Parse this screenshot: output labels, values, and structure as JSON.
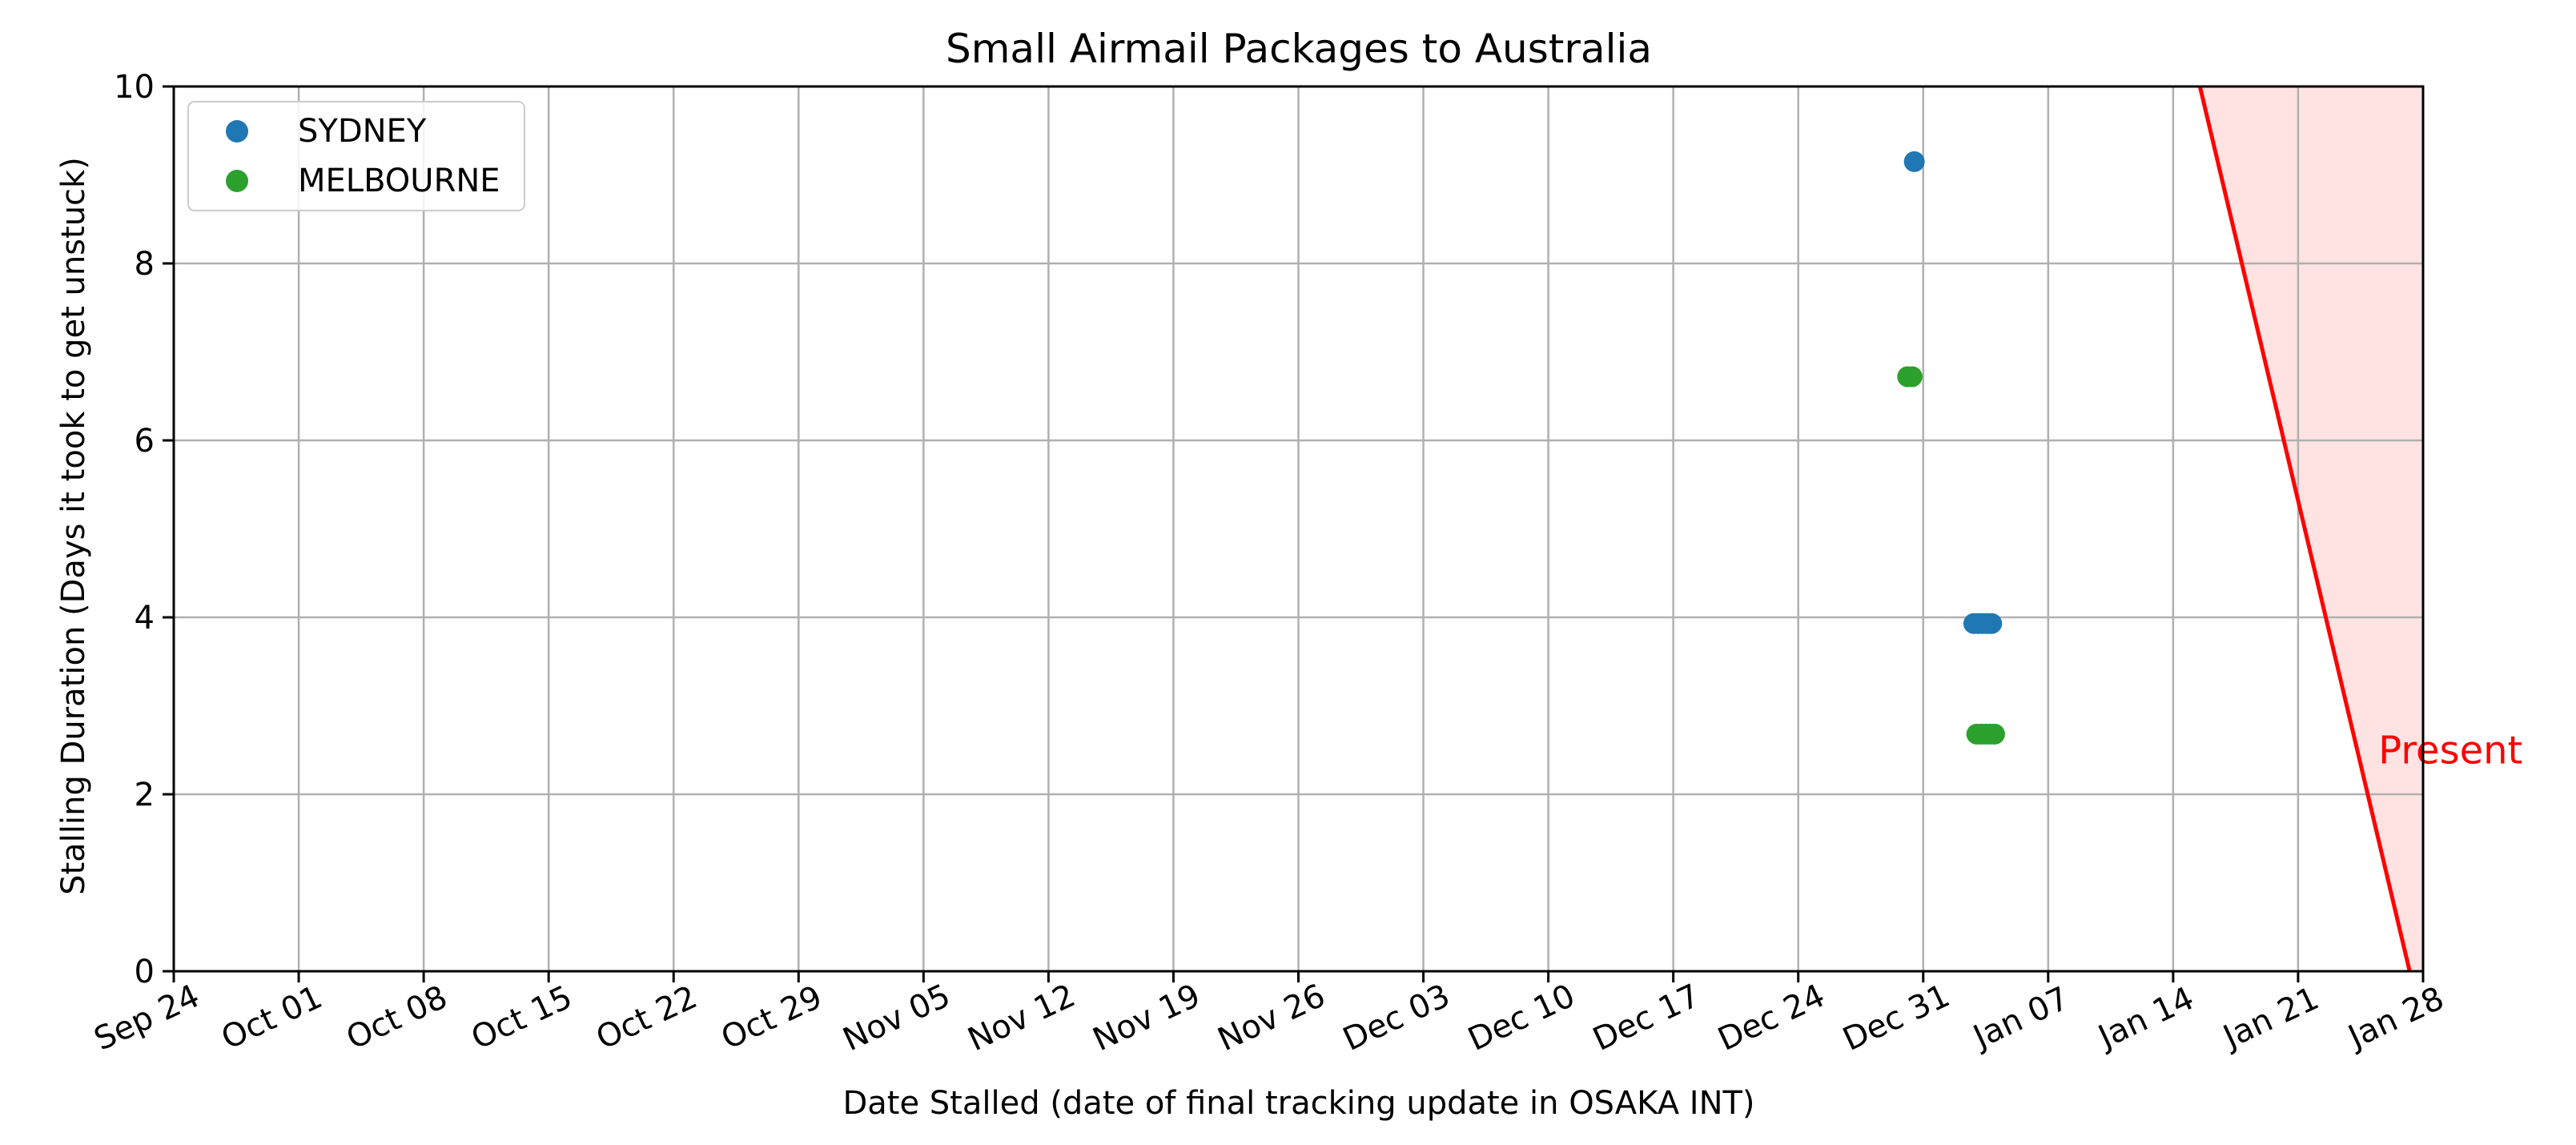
{
  "chart_data": {
    "type": "scatter",
    "title": "Small Airmail Packages to Australia",
    "xlabel": "Date Stalled (date of final tracking update in OSAKA INT)",
    "ylabel": "Stalling Duration (Days it took to get unstuck)",
    "x_axis_type": "date",
    "xlim": [
      "2023-09-24",
      "2024-01-28"
    ],
    "ylim": [
      0,
      10
    ],
    "x_ticks": [
      "Sep 24",
      "Oct 01",
      "Oct 08",
      "Oct 15",
      "Oct 22",
      "Oct 29",
      "Nov 05",
      "Nov 12",
      "Nov 19",
      "Nov 26",
      "Dec 03",
      "Dec 10",
      "Dec 17",
      "Dec 24",
      "Dec 31",
      "Jan 07",
      "Jan 14",
      "Jan 21",
      "Jan 28"
    ],
    "x_tick_dates": [
      "2023-09-24",
      "2023-10-01",
      "2023-10-08",
      "2023-10-15",
      "2023-10-22",
      "2023-10-29",
      "2023-11-05",
      "2023-11-12",
      "2023-11-19",
      "2023-11-26",
      "2023-12-03",
      "2023-12-10",
      "2023-12-17",
      "2023-12-24",
      "2023-12-31",
      "2024-01-07",
      "2024-01-14",
      "2024-01-21",
      "2024-01-28"
    ],
    "y_ticks": [
      "0",
      "2",
      "4",
      "6",
      "8",
      "10"
    ],
    "y_tick_values": [
      0,
      2,
      4,
      6,
      8,
      10
    ],
    "grid": true,
    "legend_position": "top-left",
    "series": [
      {
        "name": "SYDNEY",
        "color": "#1f77b4",
        "points": [
          {
            "x": "2023-12-30T12:00",
            "y": 9.15
          },
          {
            "x": "2024-01-02T20:00",
            "y": 3.93
          },
          {
            "x": "2024-01-03T02:00",
            "y": 3.93
          },
          {
            "x": "2024-01-03T08:00",
            "y": 3.93
          },
          {
            "x": "2024-01-03T14:00",
            "y": 3.93
          },
          {
            "x": "2024-01-03T20:00",
            "y": 3.93
          }
        ]
      },
      {
        "name": "MELBOURNE",
        "color": "#2ca02c",
        "points": [
          {
            "x": "2023-12-30T03:00",
            "y": 6.72
          },
          {
            "x": "2023-12-30T09:00",
            "y": 6.72
          },
          {
            "x": "2024-01-03T00:00",
            "y": 2.68
          },
          {
            "x": "2024-01-03T06:00",
            "y": 2.68
          },
          {
            "x": "2024-01-03T12:00",
            "y": 2.68
          },
          {
            "x": "2024-01-03T18:00",
            "y": 2.68
          },
          {
            "x": "2024-01-04T00:00",
            "y": 2.68
          }
        ]
      }
    ],
    "annotation": {
      "text": "Present",
      "color": "#ff0000",
      "fill_color": "#ffcccc",
      "line_top": {
        "x": "2024-01-15T12:00",
        "y": 10
      },
      "line_bottom": {
        "x": "2024-01-27T06:00",
        "y": 0
      },
      "label_anchor": {
        "x": "2024-01-25T12:00",
        "y": 2.35
      }
    }
  }
}
